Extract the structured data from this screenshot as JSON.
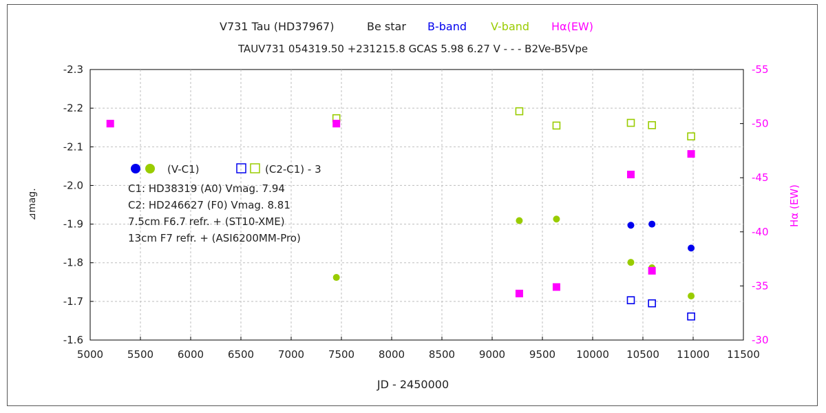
{
  "chart_data": {
    "type": "scatter",
    "title": {
      "star": "V731 Tau (HD37967)",
      "type": "Be star",
      "b_band": "B-band",
      "v_band": "V-band",
      "halpha": "Hα(EW)"
    },
    "subtitle": "TAUV731 054319.50 +231215.8 GCAS 5.98 6.27 V - - - B2Ve-B5Vpe",
    "xlabel": "JD - 2450000",
    "ylabel_left": "⊿mag.",
    "ylabel_right": "Hα (EW)",
    "xlim": [
      5000,
      11500
    ],
    "ylim_left": [
      -1.6,
      -2.3
    ],
    "ylim_right": [
      -30,
      -55
    ],
    "x_ticks": [
      5000,
      5500,
      6000,
      6500,
      7000,
      7500,
      8000,
      8500,
      9000,
      9500,
      10000,
      10500,
      11000,
      11500
    ],
    "y_left_ticks": [
      -2.3,
      -2.2,
      -2.1,
      -2.0,
      -1.9,
      -1.8,
      -1.7,
      -1.6
    ],
    "y_right_ticks": [
      -55,
      -50,
      -45,
      -40,
      -35,
      -30
    ],
    "grid": true,
    "colors": {
      "b": "#0000ee",
      "v": "#99cc00",
      "halpha": "#ff00ff"
    },
    "legend": {
      "filled_label": "(V-C1)",
      "open_label": "(C2-C1) - 3",
      "lines": [
        "C1: HD38319 (A0) Vmag. 7.94",
        "C2: HD246627 (F0) Vmag. 8.81",
        "7.5cm  F6.7  refr. +  (ST10-XME)",
        "13cm  F7  refr. + (ASI6200MM-Pro)"
      ]
    },
    "series": [
      {
        "marker": "filled-circle",
        "band": "B",
        "axis": "left",
        "x": [
          10380,
          10590,
          10980
        ],
        "y": [
          -1.897,
          -1.9,
          -1.838
        ]
      },
      {
        "marker": "filled-circle",
        "band": "V",
        "axis": "left",
        "x": [
          7450,
          9270,
          9640,
          10380,
          10590,
          10980
        ],
        "y": [
          -1.762,
          -1.909,
          -1.913,
          -1.801,
          -1.787,
          -1.714
        ]
      },
      {
        "marker": "open-square",
        "band": "B",
        "axis": "left",
        "x": [
          10380,
          10590,
          10980
        ],
        "y": [
          -1.703,
          -1.695,
          -1.661
        ]
      },
      {
        "marker": "open-square",
        "band": "V",
        "axis": "left",
        "x": [
          7450,
          9270,
          9640,
          10380,
          10590,
          10980
        ],
        "y": [
          -2.174,
          -2.192,
          -2.155,
          -2.162,
          -2.156,
          -2.127
        ]
      },
      {
        "marker": "filled-square",
        "band": "Halpha",
        "axis": "right",
        "x": [
          5200,
          7450,
          9270,
          9640,
          10380,
          10590,
          10980
        ],
        "y": [
          -50.0,
          -50.0,
          -34.3,
          -34.9,
          -45.3,
          -36.4,
          -47.2
        ]
      }
    ]
  }
}
